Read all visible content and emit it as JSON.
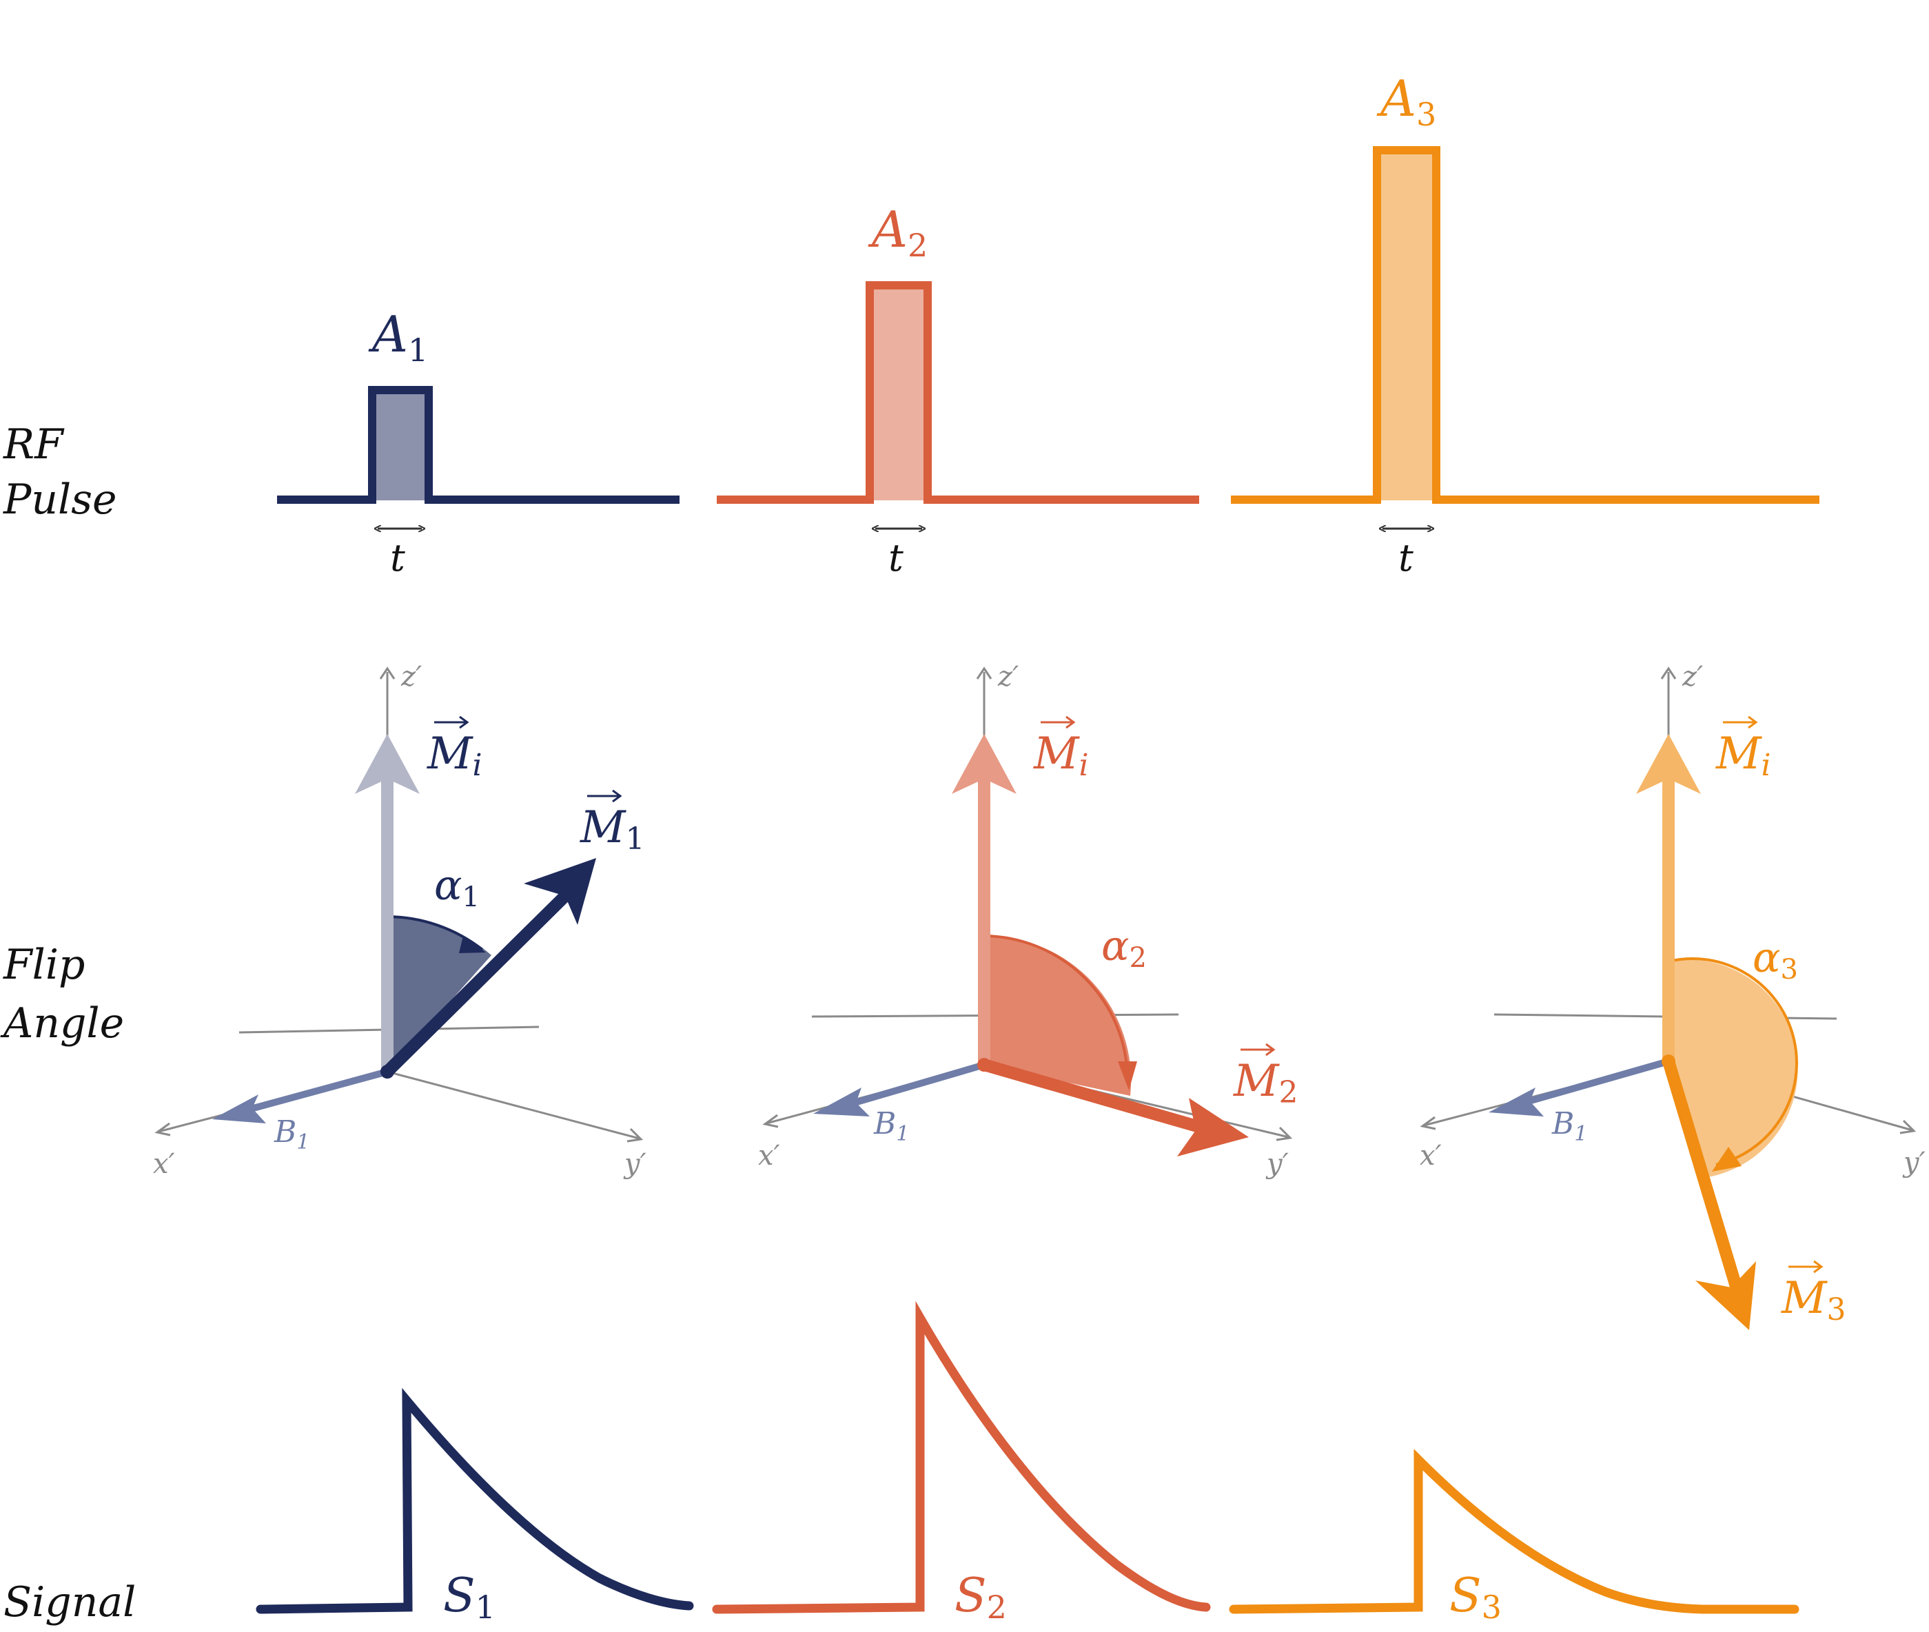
{
  "row_labels": {
    "rf_line1": "RF",
    "rf_line2": "Pulse",
    "flip_line1": "Flip",
    "flip_line2": "Angle",
    "signal": "Signal"
  },
  "axis_labels": {
    "x": "x′",
    "y": "y′",
    "z": "z′"
  },
  "b1_label": {
    "base": "B",
    "sub": "1"
  },
  "duration_label": "t",
  "initial_vector": {
    "base": "M",
    "sub": "i"
  },
  "columns": [
    {
      "color": "#1e2a5a",
      "fill": "#8c91ac",
      "mi_color": "#b3b6c6",
      "angle_fill": "#636d8e",
      "amplitude": {
        "base": "A",
        "sub": "1"
      },
      "angle": {
        "base": "α",
        "sub": "1"
      },
      "magnetization": {
        "base": "M",
        "sub": "1"
      },
      "signal": {
        "base": "S",
        "sub": "1"
      }
    },
    {
      "color": "#d95e3c",
      "fill": "#ebb0a0",
      "mi_color": "#e79a85",
      "angle_fill": "#e2856b",
      "amplitude": {
        "base": "A",
        "sub": "2"
      },
      "angle": {
        "base": "α",
        "sub": "2"
      },
      "magnetization": {
        "base": "M",
        "sub": "2"
      },
      "signal": {
        "base": "S",
        "sub": "2"
      }
    },
    {
      "color": "#f08d12",
      "fill": "#f7c58a",
      "mi_color": "#f5b667",
      "angle_fill": "#f7c486",
      "amplitude": {
        "base": "A",
        "sub": "3"
      },
      "angle": {
        "base": "α",
        "sub": "3"
      },
      "magnetization": {
        "base": "M",
        "sub": "3"
      },
      "signal": {
        "base": "S",
        "sub": "3"
      }
    }
  ],
  "b1_color": "#6f7da8"
}
